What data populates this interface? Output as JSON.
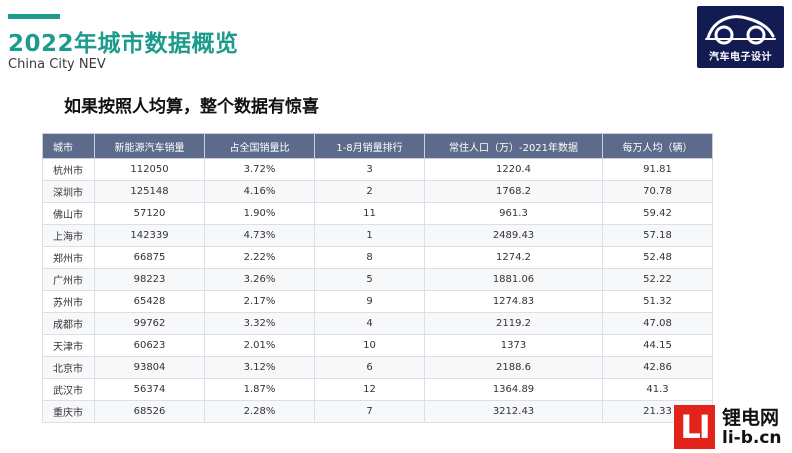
{
  "header": {
    "title": "2022年城市数据概览",
    "subtitle": "China City NEV",
    "accent_color": "#1d9c8e"
  },
  "logo": {
    "text": "汽车电子设计",
    "icon": "car-outline-icon",
    "background": "#121b52"
  },
  "headline": "如果按照人均算，整个数据有惊喜",
  "table": {
    "header_color": "#5c6b8c",
    "columns": [
      "城市",
      "新能源汽车销量",
      "占全国销量比",
      "1-8月销量排行",
      "常住人口（万）-2021年数据",
      "每万人均（辆）"
    ],
    "rows": [
      [
        "杭州市",
        "112050",
        "3.72%",
        "3",
        "1220.4",
        "91.81"
      ],
      [
        "深圳市",
        "125148",
        "4.16%",
        "2",
        "1768.2",
        "70.78"
      ],
      [
        "佛山市",
        "57120",
        "1.90%",
        "11",
        "961.3",
        "59.42"
      ],
      [
        "上海市",
        "142339",
        "4.73%",
        "1",
        "2489.43",
        "57.18"
      ],
      [
        "郑州市",
        "66875",
        "2.22%",
        "8",
        "1274.2",
        "52.48"
      ],
      [
        "广州市",
        "98223",
        "3.26%",
        "5",
        "1881.06",
        "52.22"
      ],
      [
        "苏州市",
        "65428",
        "2.17%",
        "9",
        "1274.83",
        "51.32"
      ],
      [
        "成都市",
        "99762",
        "3.32%",
        "4",
        "2119.2",
        "47.08"
      ],
      [
        "天津市",
        "60623",
        "2.01%",
        "10",
        "1373",
        "44.15"
      ],
      [
        "北京市",
        "93804",
        "3.12%",
        "6",
        "2188.6",
        "42.86"
      ],
      [
        "武汉市",
        "56374",
        "1.87%",
        "12",
        "1364.89",
        "41.3"
      ],
      [
        "重庆市",
        "68526",
        "2.28%",
        "7",
        "3212.43",
        "21.33"
      ]
    ]
  },
  "watermark": {
    "badge": "LI",
    "name": "锂电网",
    "url": "li-b.cn",
    "badge_color": "#e2231a"
  }
}
